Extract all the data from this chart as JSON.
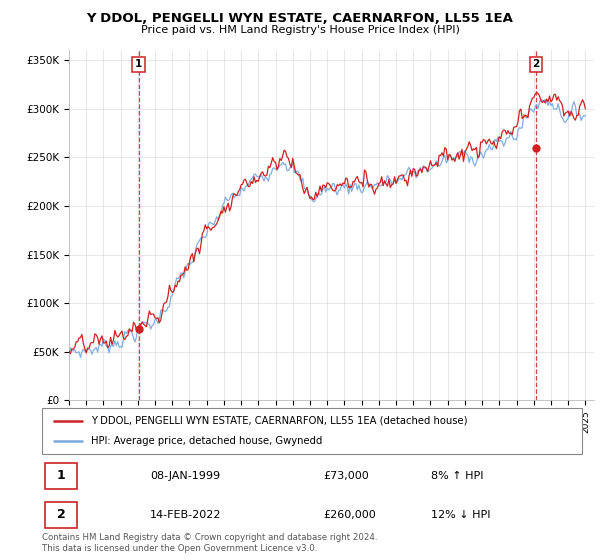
{
  "title": "Y DDOL, PENGELLI WYN ESTATE, CAERNARFON, LL55 1EA",
  "subtitle": "Price paid vs. HM Land Registry's House Price Index (HPI)",
  "legend_line1": "Y DDOL, PENGELLI WYN ESTATE, CAERNARFON, LL55 1EA (detached house)",
  "legend_line2": "HPI: Average price, detached house, Gwynedd",
  "sale1_date": "08-JAN-1999",
  "sale1_price": "£73,000",
  "sale1_hpi": "8% ↑ HPI",
  "sale2_date": "14-FEB-2022",
  "sale2_price": "£260,000",
  "sale2_hpi": "12% ↓ HPI",
  "footer": "Contains HM Land Registry data © Crown copyright and database right 2024.\nThis data is licensed under the Open Government Licence v3.0.",
  "ylim": [
    0,
    360000
  ],
  "yticks": [
    0,
    50000,
    100000,
    150000,
    200000,
    250000,
    300000,
    350000
  ],
  "ytick_labels": [
    "£0",
    "£50K",
    "£100K",
    "£150K",
    "£200K",
    "£250K",
    "£300K",
    "£350K"
  ],
  "hpi_color": "#7aaadd",
  "price_color": "#cc2222",
  "marker1_x": 1999.05,
  "marker1_y": 73000,
  "marker2_x": 2022.12,
  "marker2_y": 260000,
  "vline1_x": 1999.05,
  "vline2_x": 2022.12,
  "xmin": 1995.0,
  "xmax": 2025.5,
  "bg_color": "#ffffff",
  "grid_color": "#dddddd"
}
